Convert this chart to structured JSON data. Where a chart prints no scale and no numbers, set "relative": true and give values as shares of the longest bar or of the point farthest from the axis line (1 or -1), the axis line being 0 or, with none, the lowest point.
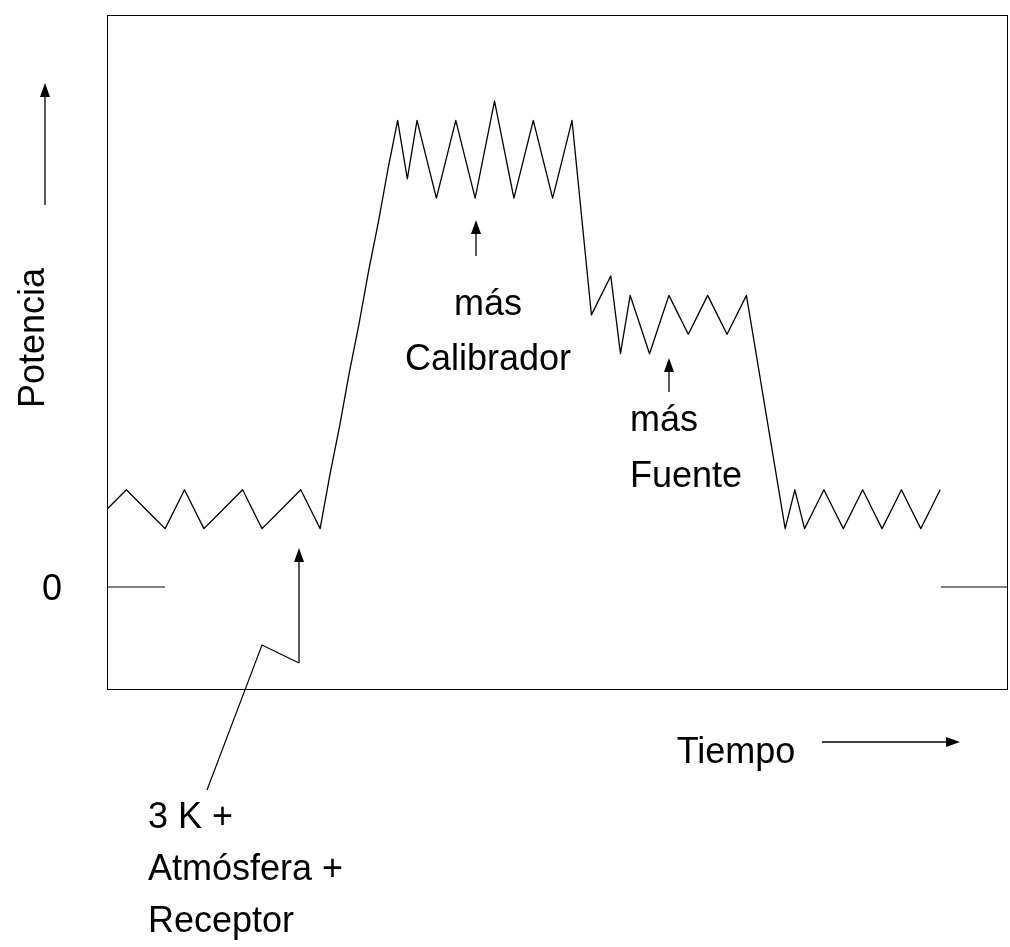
{
  "chart_data": {
    "type": "line",
    "relative": true,
    "xlabel": "Tiempo",
    "ylabel": "Potencia",
    "color": "#000000",
    "marker": "none",
    "line_style": "solid",
    "categories": [
      null,
      null,
      null,
      null,
      null,
      null,
      null,
      null,
      null,
      null,
      null,
      null,
      null,
      null,
      null,
      null,
      null,
      null,
      null,
      null,
      null,
      null,
      null,
      null,
      null,
      null,
      null,
      null,
      null,
      null,
      null,
      null,
      null,
      null,
      null,
      null,
      null,
      null,
      null,
      null,
      null,
      null,
      null,
      null,
      null,
      null,
      null,
      null,
      null,
      null,
      null,
      null,
      null,
      null,
      null,
      null,
      null,
      null,
      null,
      null,
      null,
      null,
      null,
      null,
      null,
      null,
      null,
      null,
      null,
      null,
      null,
      null,
      null,
      null,
      null,
      null,
      null,
      null,
      null,
      null,
      null,
      null,
      null,
      null,
      null,
      null,
      null,
      null,
      null,
      null,
      null,
      null,
      null,
      null
    ],
    "values": [
      0.16,
      0.18,
      0.2,
      0.18,
      0.16,
      0.14,
      0.12,
      0.16,
      0.2,
      0.16,
      0.12,
      0.14,
      0.16,
      0.18,
      0.2,
      0.16,
      0.12,
      0.14,
      0.16,
      0.18,
      0.2,
      0.16,
      0.12,
      0.23,
      0.33,
      0.44,
      0.54,
      0.65,
      0.75,
      0.86,
      0.96,
      0.84,
      0.96,
      0.88,
      0.8,
      0.88,
      0.96,
      0.88,
      0.8,
      0.9,
      1,
      0.9,
      0.8,
      0.88,
      0.96,
      0.88,
      0.8,
      0.88,
      0.96,
      0.76,
      0.56,
      0.6,
      0.64,
      0.48,
      0.6,
      0.54,
      0.48,
      0.54,
      0.6,
      0.56,
      0.52,
      0.56,
      0.6,
      0.56,
      0.52,
      0.56,
      0.6,
      0.48,
      0.36,
      0.24,
      0.12,
      0.2,
      0.12,
      0.16,
      0.2,
      0.16,
      0.12,
      0.16,
      0.2,
      0.16,
      0.12,
      0.16,
      0.2,
      0.16,
      0.12,
      0.16,
      0.2,
      null,
      null,
      null,
      null,
      null,
      null,
      null
    ],
    "ref_lines": [
      {
        "axis": "y",
        "value": 0,
        "label": "0"
      }
    ],
    "annotations": [
      "más\nCalibrador",
      "más\nFuente",
      "3 K +\nAtmósfera +\nReceptor"
    ]
  }
}
